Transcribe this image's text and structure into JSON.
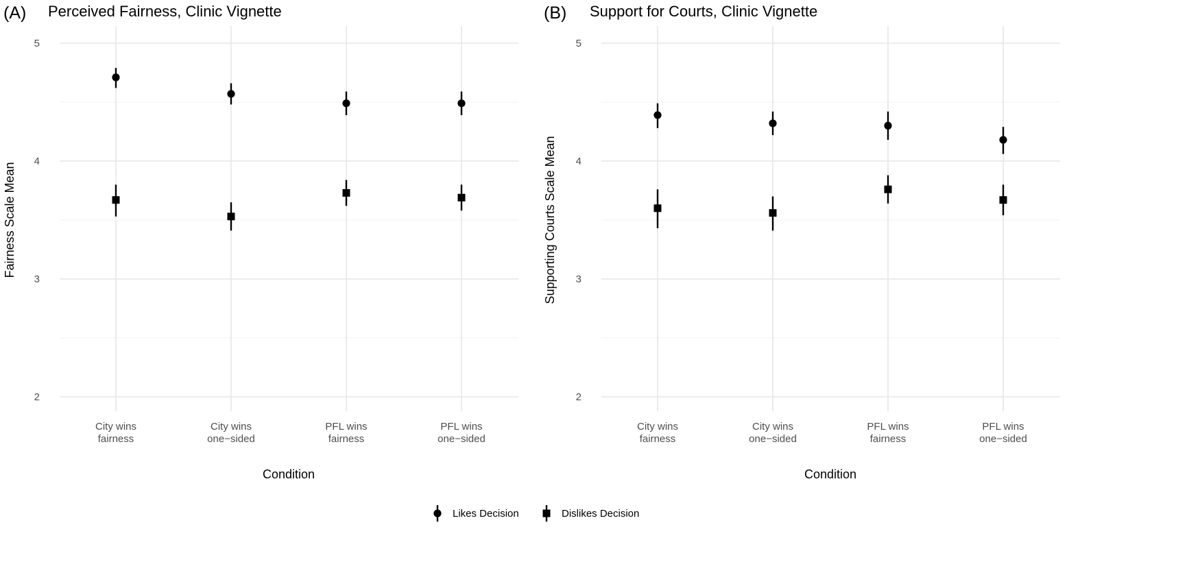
{
  "chart_data": [
    {
      "panel": "A",
      "tag": "(A)",
      "type": "scatter",
      "title": "Perceived Fairness, Clinic Vignette",
      "xlabel": "Condition",
      "ylabel": "Fairness Scale Mean",
      "categories": [
        {
          "line1": "City wins",
          "line2": "fairness"
        },
        {
          "line1": "City wins",
          "line2": "one−sided"
        },
        {
          "line1": "PFL wins",
          "line2": "fairness"
        },
        {
          "line1": "PFL wins",
          "line2": "one−sided"
        }
      ],
      "ylim": [
        1.9,
        5.15
      ],
      "yticks": [
        "2",
        "3",
        "4",
        "5"
      ],
      "series": [
        {
          "name": "Likes Decision",
          "marker": "circle",
          "values": [
            4.71,
            4.57,
            4.49,
            4.49
          ],
          "lower": [
            4.62,
            4.48,
            4.39,
            4.39
          ],
          "upper": [
            4.79,
            4.66,
            4.59,
            4.59
          ]
        },
        {
          "name": "Dislikes Decision",
          "marker": "square",
          "values": [
            3.67,
            3.53,
            3.73,
            3.69
          ],
          "lower": [
            3.53,
            3.41,
            3.62,
            3.58
          ],
          "upper": [
            3.8,
            3.65,
            3.84,
            3.8
          ]
        }
      ]
    },
    {
      "panel": "B",
      "tag": "(B)",
      "type": "scatter",
      "title": "Support for Courts, Clinic Vignette",
      "xlabel": "Condition",
      "ylabel": "Supporting Courts Scale Mean",
      "categories": [
        {
          "line1": "City wins",
          "line2": "fairness"
        },
        {
          "line1": "City wins",
          "line2": "one−sided"
        },
        {
          "line1": "PFL wins",
          "line2": "fairness"
        },
        {
          "line1": "PFL wins",
          "line2": "one−sided"
        }
      ],
      "ylim": [
        1.9,
        5.15
      ],
      "yticks": [
        "2",
        "3",
        "4",
        "5"
      ],
      "series": [
        {
          "name": "Likes Decision",
          "marker": "circle",
          "values": [
            4.39,
            4.32,
            4.3,
            4.18
          ],
          "lower": [
            4.28,
            4.22,
            4.18,
            4.06
          ],
          "upper": [
            4.49,
            4.42,
            4.42,
            4.29
          ]
        },
        {
          "name": "Dislikes Decision",
          "marker": "square",
          "values": [
            3.6,
            3.56,
            3.76,
            3.67
          ],
          "lower": [
            3.43,
            3.41,
            3.64,
            3.54
          ],
          "upper": [
            3.76,
            3.7,
            3.88,
            3.8
          ]
        }
      ]
    }
  ],
  "legend": {
    "position": "bottom",
    "items": [
      {
        "label": "Likes Decision",
        "marker": "circle"
      },
      {
        "label": "Dislikes Decision",
        "marker": "square"
      }
    ]
  }
}
